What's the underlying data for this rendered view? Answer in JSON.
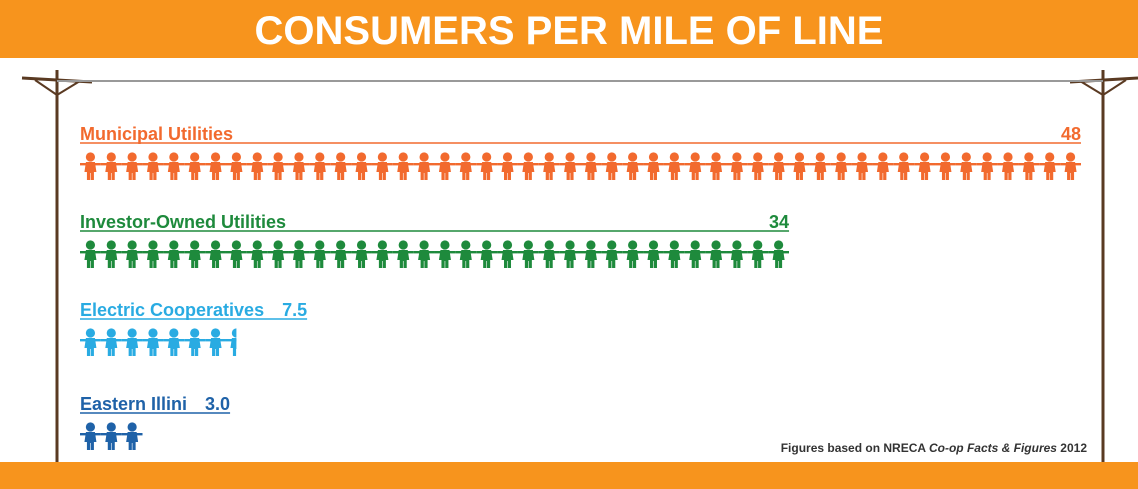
{
  "chart_data": {
    "type": "pictograph",
    "title": "CONSUMERS PER MILE OF LINE",
    "categories": [
      "Municipal Utilities",
      "Investor-Owned Utilities",
      "Electric Cooperatives",
      "Eastern Illini"
    ],
    "values": [
      48,
      34,
      7.5,
      3
    ],
    "value_labels": [
      "48",
      "34",
      "7.5",
      "3.0"
    ],
    "colors": [
      "#f26a2e",
      "#1e8a3c",
      "#29abe2",
      "#1f62a8"
    ],
    "xlim": [
      0,
      48
    ],
    "source": [
      "Figures based on NRECA ",
      "Co-op Facts & Figures",
      " 2012"
    ]
  }
}
